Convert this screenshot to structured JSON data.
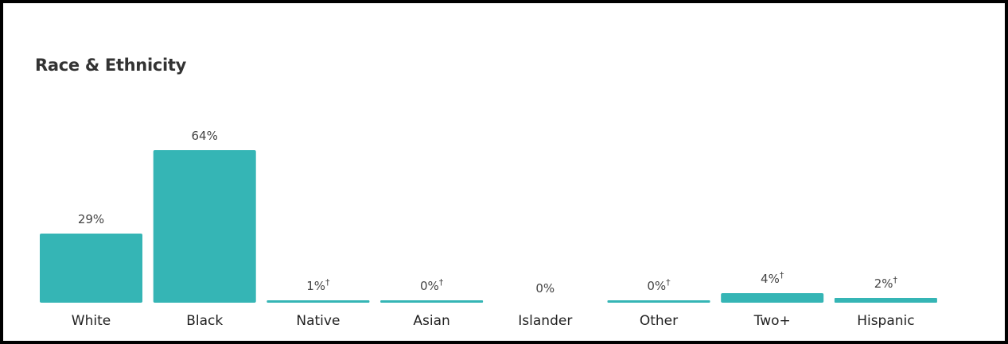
{
  "chart_data": {
    "type": "bar",
    "title": "Race & Ethnicity",
    "xlabel": "",
    "ylabel": "",
    "categories": [
      "White",
      "Black",
      "Native",
      "Asian",
      "Islander",
      "Other",
      "Two+",
      "Hispanic"
    ],
    "values": [
      29,
      64,
      1,
      0,
      0,
      0,
      4,
      2
    ],
    "value_labels": [
      "29%",
      "64%",
      "1%",
      "0%",
      "0%",
      "0%",
      "4%",
      "2%"
    ],
    "footnote_marks": [
      "",
      "",
      "†",
      "†",
      "",
      "†",
      "†",
      "†"
    ],
    "ylim": [
      0,
      64
    ],
    "grid": false,
    "colors": {
      "bar": "#35b5b5"
    }
  }
}
